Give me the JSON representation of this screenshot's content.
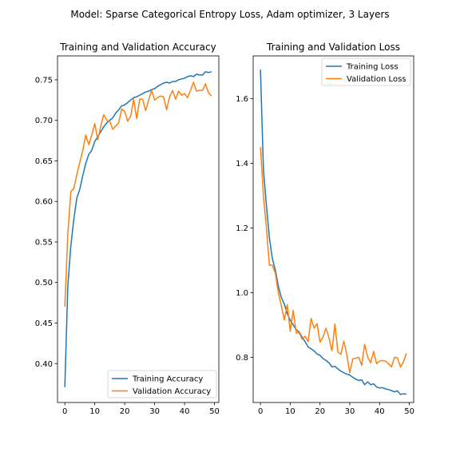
{
  "figure": {
    "suptitle": "Model: Sparse Categorical Entropy Loss, Adam optimizer, 3 Layers"
  },
  "colors": {
    "training": "#1f77b4",
    "validation": "#ff7f0e"
  },
  "chart_data": [
    {
      "type": "line",
      "title": "Training and Validation Accuracy",
      "xlabel": "",
      "ylabel": "",
      "xlim": [
        -2.45,
        51.45
      ],
      "ylim": [
        0.352,
        0.7795
      ],
      "xticks": [
        0,
        10,
        20,
        30,
        40,
        50
      ],
      "yticks": [
        0.4,
        0.45,
        0.5,
        0.55,
        0.6,
        0.65,
        0.7,
        0.75
      ],
      "ytick_format": 2,
      "legend_position": "lower-right",
      "x": [
        0,
        1,
        2,
        3,
        4,
        5,
        6,
        7,
        8,
        9,
        10,
        11,
        12,
        13,
        14,
        15,
        16,
        17,
        18,
        19,
        20,
        21,
        22,
        23,
        24,
        25,
        26,
        27,
        28,
        29,
        30,
        31,
        32,
        33,
        34,
        35,
        36,
        37,
        38,
        39,
        40,
        41,
        42,
        43,
        44,
        45,
        46,
        47,
        48,
        49
      ],
      "series": [
        {
          "name": "Training Accuracy",
          "values": [
            0.371,
            0.496,
            0.545,
            0.578,
            0.604,
            0.615,
            0.632,
            0.647,
            0.658,
            0.663,
            0.674,
            0.68,
            0.686,
            0.692,
            0.697,
            0.7,
            0.703,
            0.709,
            0.713,
            0.718,
            0.719,
            0.722,
            0.725,
            0.728,
            0.729,
            0.731,
            0.733,
            0.735,
            0.736,
            0.738,
            0.739,
            0.742,
            0.744,
            0.746,
            0.747,
            0.746,
            0.748,
            0.748,
            0.75,
            0.751,
            0.752,
            0.754,
            0.755,
            0.754,
            0.757,
            0.756,
            0.756,
            0.76,
            0.759,
            0.76
          ]
        },
        {
          "name": "Validation Accuracy",
          "values": [
            0.47,
            0.56,
            0.612,
            0.616,
            0.633,
            0.648,
            0.663,
            0.682,
            0.67,
            0.682,
            0.696,
            0.676,
            0.693,
            0.707,
            0.7,
            0.699,
            0.689,
            0.693,
            0.697,
            0.714,
            0.711,
            0.699,
            0.705,
            0.726,
            0.702,
            0.726,
            0.726,
            0.712,
            0.725,
            0.737,
            0.725,
            0.728,
            0.73,
            0.729,
            0.713,
            0.729,
            0.737,
            0.726,
            0.736,
            0.731,
            0.733,
            0.728,
            0.737,
            0.747,
            0.736,
            0.737,
            0.737,
            0.745,
            0.734,
            0.73
          ]
        }
      ]
    },
    {
      "type": "line",
      "title": "Training and Validation Loss",
      "xlabel": "",
      "ylabel": "",
      "xlim": [
        -2.45,
        51.45
      ],
      "ylim": [
        0.66,
        1.7325
      ],
      "xticks": [
        0,
        10,
        20,
        30,
        40,
        50
      ],
      "yticks": [
        0.8,
        1.0,
        1.2,
        1.4,
        1.6
      ],
      "ytick_format": 1,
      "legend_position": "upper-right",
      "x": [
        0,
        1,
        2,
        3,
        4,
        5,
        6,
        7,
        8,
        9,
        10,
        11,
        12,
        13,
        14,
        15,
        16,
        17,
        18,
        19,
        20,
        21,
        22,
        23,
        24,
        25,
        26,
        27,
        28,
        29,
        30,
        31,
        32,
        33,
        34,
        35,
        36,
        37,
        38,
        39,
        40,
        41,
        42,
        43,
        44,
        45,
        46,
        47,
        48,
        49
      ],
      "series": [
        {
          "name": "Training Loss",
          "values": [
            1.69,
            1.38,
            1.27,
            1.17,
            1.105,
            1.07,
            1.02,
            0.985,
            0.965,
            0.935,
            0.915,
            0.9,
            0.885,
            0.878,
            0.862,
            0.848,
            0.832,
            0.826,
            0.82,
            0.81,
            0.806,
            0.796,
            0.79,
            0.783,
            0.77,
            0.772,
            0.764,
            0.757,
            0.752,
            0.748,
            0.745,
            0.738,
            0.732,
            0.728,
            0.73,
            0.715,
            0.724,
            0.715,
            0.718,
            0.708,
            0.705,
            0.706,
            0.702,
            0.7,
            0.697,
            0.693,
            0.696,
            0.685,
            0.687,
            0.686
          ]
        },
        {
          "name": "Validation Loss",
          "values": [
            1.45,
            1.3,
            1.2,
            1.085,
            1.085,
            1.06,
            1.0,
            0.96,
            0.915,
            0.963,
            0.88,
            0.945,
            0.875,
            0.876,
            0.856,
            0.865,
            0.848,
            0.92,
            0.89,
            0.904,
            0.847,
            0.862,
            0.89,
            0.86,
            0.82,
            0.903,
            0.816,
            0.809,
            0.85,
            0.808,
            0.752,
            0.795,
            0.797,
            0.8,
            0.775,
            0.84,
            0.8,
            0.783,
            0.818,
            0.78,
            0.788,
            0.79,
            0.788,
            0.78,
            0.77,
            0.8,
            0.798,
            0.77,
            0.785,
            0.812
          ]
        }
      ]
    }
  ]
}
